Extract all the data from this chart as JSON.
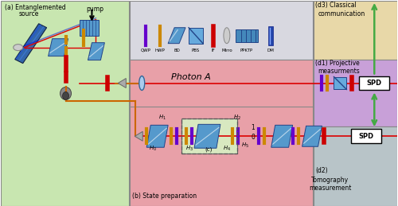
{
  "bg_color": "#ffffff",
  "region_a_color": "#c8e6b0",
  "region_b_color": "#e8a0a8",
  "region_d1_color": "#c8a0d8",
  "region_d2_color": "#b8c4c8",
  "region_d3_color": "#e8d8a8",
  "legend_bg": "#d8d8e0",
  "photon_a_bg": "#e8a0a8",
  "label_a": "(a) Entanglemented\n     source",
  "label_b": "(b) State preparation",
  "label_d1": "(d1) Projective\n      measurments",
  "label_d2": "(d2)  Tomography\n      measurement",
  "label_d3": "(d3) Classical\ncommunication",
  "label_photon_a": "Photon A",
  "label_pump": "pump",
  "legend_items": [
    "QWP",
    "HWP",
    "BD",
    "PBS",
    "IF",
    "Mirro",
    "PPKTP",
    "DM"
  ],
  "spd_label": "SPD"
}
